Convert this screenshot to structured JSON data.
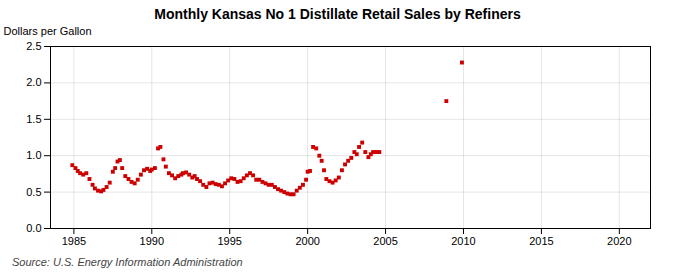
{
  "chart_data": {
    "type": "scatter",
    "title": "Monthly Kansas No 1 Distillate Retail Sales by Refiners",
    "ylabel": "Dollars per Gallon",
    "source": "Source: U.S. Energy Information Administration",
    "color": "#cc0000",
    "marker": "square",
    "grid": true,
    "xlim": [
      1983.5,
      2022
    ],
    "ylim": [
      0.0,
      2.5
    ],
    "xticks": [
      1985,
      1990,
      1995,
      2000,
      2005,
      2010,
      2015,
      2020
    ],
    "yticks": [
      {
        "value": 0.0,
        "label": "0.0"
      },
      0.5,
      {
        "value": 1.0,
        "label": "1.0"
      },
      1.5,
      {
        "value": 2.0,
        "label": "2.0"
      },
      2.5
    ],
    "x": [
      1984.9,
      1985.1,
      1985.25,
      1985.4,
      1985.6,
      1985.8,
      1986.0,
      1986.2,
      1986.35,
      1986.55,
      1986.75,
      1986.9,
      1987.1,
      1987.3,
      1987.5,
      1987.65,
      1987.8,
      1987.95,
      1988.1,
      1988.3,
      1988.5,
      1988.7,
      1988.9,
      1989.1,
      1989.3,
      1989.5,
      1989.7,
      1989.9,
      1990.0,
      1990.2,
      1990.4,
      1990.55,
      1990.75,
      1990.9,
      1991.1,
      1991.3,
      1991.5,
      1991.7,
      1991.9,
      1992.0,
      1992.2,
      1992.4,
      1992.6,
      1992.75,
      1992.9,
      1993.1,
      1993.3,
      1993.5,
      1993.7,
      1993.9,
      1994.1,
      1994.3,
      1994.5,
      1994.7,
      1994.9,
      1995.1,
      1995.3,
      1995.5,
      1995.7,
      1995.9,
      1996.1,
      1996.3,
      1996.5,
      1996.7,
      1996.9,
      1997.1,
      1997.3,
      1997.5,
      1997.7,
      1997.9,
      1998.1,
      1998.3,
      1998.5,
      1998.7,
      1998.9,
      1999.1,
      1999.3,
      1999.5,
      1999.7,
      1999.9,
      2000.0,
      2000.15,
      2000.35,
      2000.55,
      2000.75,
      2000.9,
      2001.05,
      2001.2,
      2001.4,
      2001.6,
      2001.8,
      2002.0,
      2002.2,
      2002.4,
      2002.6,
      2002.8,
      2003.0,
      2003.15,
      2003.3,
      2003.5,
      2003.7,
      2003.9,
      2004.05,
      2004.2,
      2004.4,
      2004.6,
      2008.9,
      2009.9
    ],
    "values": [
      0.87,
      0.83,
      0.79,
      0.76,
      0.74,
      0.76,
      0.68,
      0.6,
      0.55,
      0.52,
      0.51,
      0.53,
      0.57,
      0.63,
      0.78,
      0.83,
      0.92,
      0.94,
      0.83,
      0.72,
      0.68,
      0.64,
      0.62,
      0.67,
      0.74,
      0.8,
      0.82,
      0.79,
      0.81,
      0.83,
      1.1,
      1.12,
      0.95,
      0.85,
      0.76,
      0.73,
      0.69,
      0.72,
      0.74,
      0.76,
      0.77,
      0.74,
      0.7,
      0.72,
      0.68,
      0.65,
      0.6,
      0.57,
      0.62,
      0.63,
      0.61,
      0.6,
      0.58,
      0.62,
      0.66,
      0.69,
      0.68,
      0.64,
      0.65,
      0.69,
      0.73,
      0.76,
      0.73,
      0.67,
      0.67,
      0.64,
      0.62,
      0.6,
      0.6,
      0.57,
      0.54,
      0.52,
      0.5,
      0.48,
      0.47,
      0.47,
      0.52,
      0.56,
      0.6,
      0.67,
      0.78,
      0.79,
      1.12,
      1.1,
      1.0,
      0.93,
      0.8,
      0.68,
      0.65,
      0.63,
      0.66,
      0.7,
      0.8,
      0.88,
      0.93,
      0.97,
      1.05,
      1.02,
      1.12,
      1.18,
      1.05,
      0.98,
      1.02,
      1.05,
      1.05,
      1.05,
      1.75,
      2.28
    ]
  }
}
